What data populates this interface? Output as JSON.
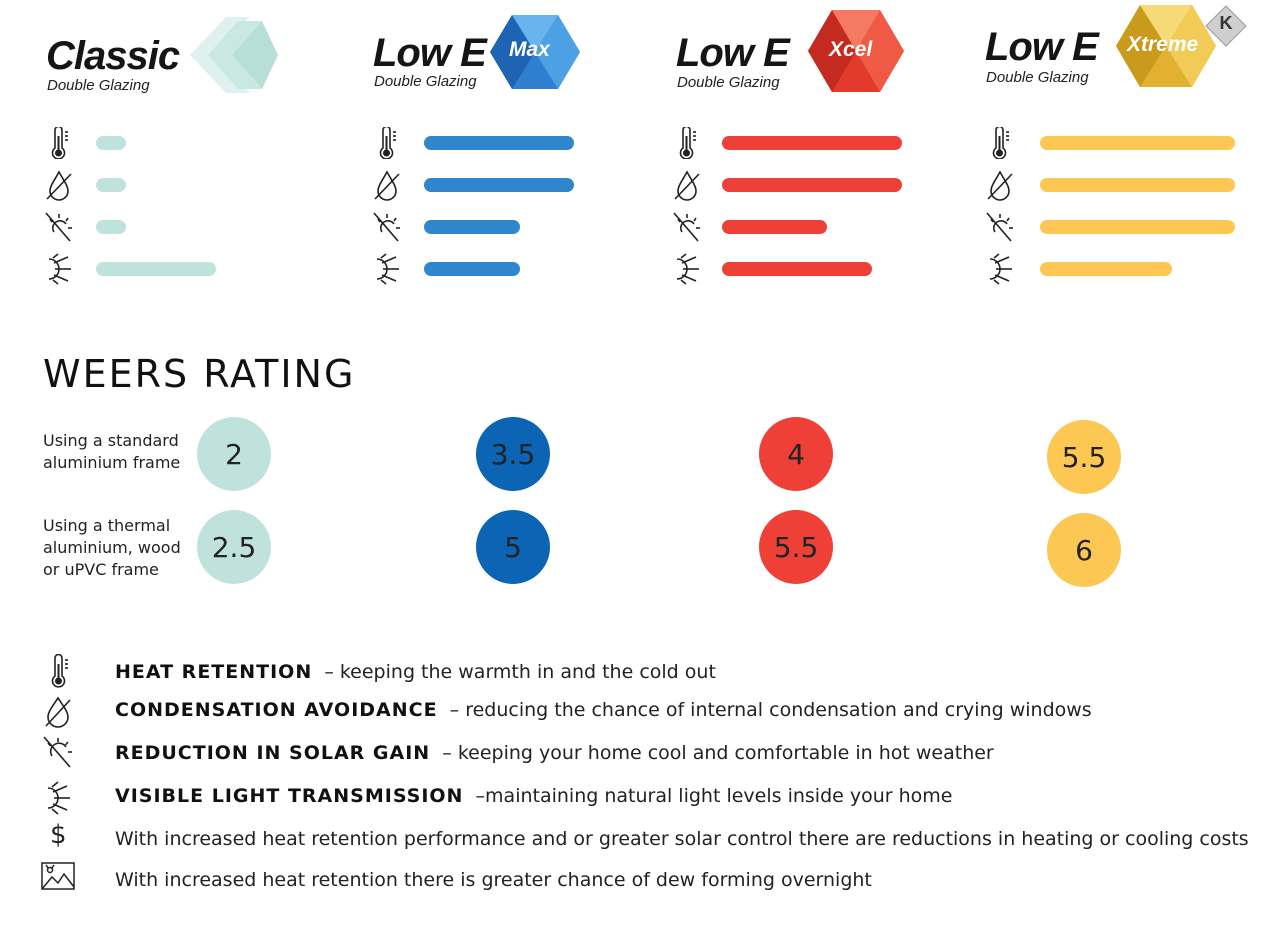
{
  "products": [
    {
      "name": "Classic",
      "gem_label": "",
      "subtitle": "Double Glazing",
      "color": "#bfe3dc"
    },
    {
      "name": "Low E",
      "gem_label": "Max",
      "subtitle": "Double Glazing",
      "color": "#2f86cc"
    },
    {
      "name": "Low E",
      "gem_label": "Xcel",
      "subtitle": "Double Glazing",
      "color": "#ee4036"
    },
    {
      "name": "Low E",
      "gem_label": "Xtreme",
      "subtitle": "Double Glazing",
      "color": "#fdc753",
      "badge": "K"
    }
  ],
  "chart_data": {
    "type": "bar",
    "categories": [
      "Heat retention",
      "Condensation avoidance",
      "Reduction in solar gain",
      "Visible light transmission"
    ],
    "series": [
      {
        "name": "Classic",
        "values": [
          1,
          1,
          1,
          4
        ]
      },
      {
        "name": "Low E Max",
        "values": [
          5,
          5,
          3.2,
          3.2
        ]
      },
      {
        "name": "Low E Xcel",
        "values": [
          6,
          6,
          3.5,
          5
        ]
      },
      {
        "name": "Low E Xtreme",
        "values": [
          6.5,
          6.5,
          6.5,
          4.4
        ]
      }
    ],
    "icons": [
      "thermometer-icon",
      "condensation-drop-icon",
      "solar-gain-icon",
      "light-transmission-icon"
    ],
    "grid": false
  },
  "weers": {
    "title": "WEERS RATING",
    "rows": [
      {
        "label": "Using a standard aluminium frame",
        "label_lines": [
          "Using a standard",
          "aluminium frame"
        ],
        "values": [
          "2",
          "3.5",
          "4",
          "5.5"
        ]
      },
      {
        "label": "Using a thermal aluminium, wood or uPVC frame",
        "label_lines": [
          "Using a thermal",
          "aluminium, wood",
          "or uPVC frame"
        ],
        "values": [
          "2.5",
          "5",
          "5.5",
          "6"
        ]
      }
    ]
  },
  "legend": [
    {
      "icon": "thermometer-icon",
      "title": "HEAT RETENTION",
      "desc": "– keeping the warmth in and the cold out"
    },
    {
      "icon": "condensation-drop-icon",
      "title": "CONDENSATION AVOIDANCE",
      "desc": "– reducing the chance of internal condensation and crying windows"
    },
    {
      "icon": "solar-gain-icon",
      "title": "REDUCTION IN SOLAR GAIN",
      "desc": "– keeping your home cool and comfortable in hot weather"
    },
    {
      "icon": "light-transmission-icon",
      "title": "VISIBLE LIGHT TRANSMISSION",
      "desc": "–maintaining natural light levels inside your home"
    },
    {
      "icon": "dollar-icon",
      "title": "",
      "desc": "With increased heat retention performance and or greater solar control there are reductions in heating or cooling costs"
    },
    {
      "icon": "dew-window-icon",
      "title": "",
      "desc": "With increased heat retention there is greater chance of dew forming overnight"
    }
  ]
}
